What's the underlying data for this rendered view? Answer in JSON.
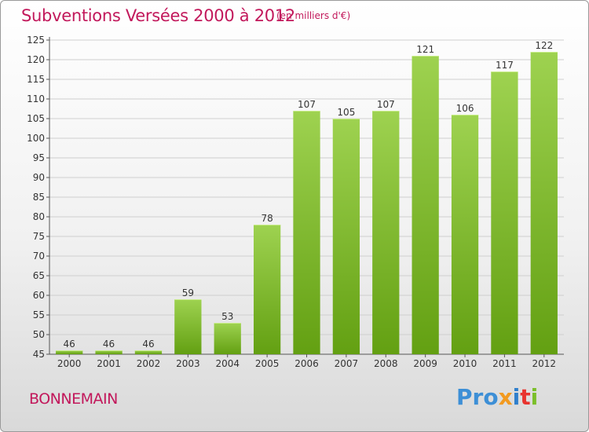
{
  "header": {
    "title": "Subventions Versées 2000 à 2012",
    "subtitle": "(en milliers d'€)"
  },
  "footer": {
    "commune": "BONNEMAIN",
    "logo": [
      "Pro",
      "x",
      "i",
      "t",
      "i"
    ]
  },
  "colors": {
    "bar_light": "#9ed250",
    "bar_dark": "#63a012",
    "title": "#c2185b"
  },
  "chart_data": {
    "type": "bar",
    "title": "Subventions Versées 2000 à 2012",
    "subtitle": "(en milliers d'€)",
    "categories": [
      "2000",
      "2001",
      "2002",
      "2003",
      "2004",
      "2005",
      "2006",
      "2007",
      "2008",
      "2009",
      "2010",
      "2011",
      "2012"
    ],
    "values": [
      46,
      46,
      46,
      59,
      53,
      78,
      107,
      105,
      107,
      121,
      106,
      117,
      122
    ],
    "ylim": [
      45,
      125
    ],
    "yticks": [
      45,
      50,
      55,
      60,
      65,
      70,
      75,
      80,
      85,
      90,
      95,
      100,
      105,
      110,
      115,
      120,
      125
    ],
    "grid": true,
    "legend": "none"
  }
}
